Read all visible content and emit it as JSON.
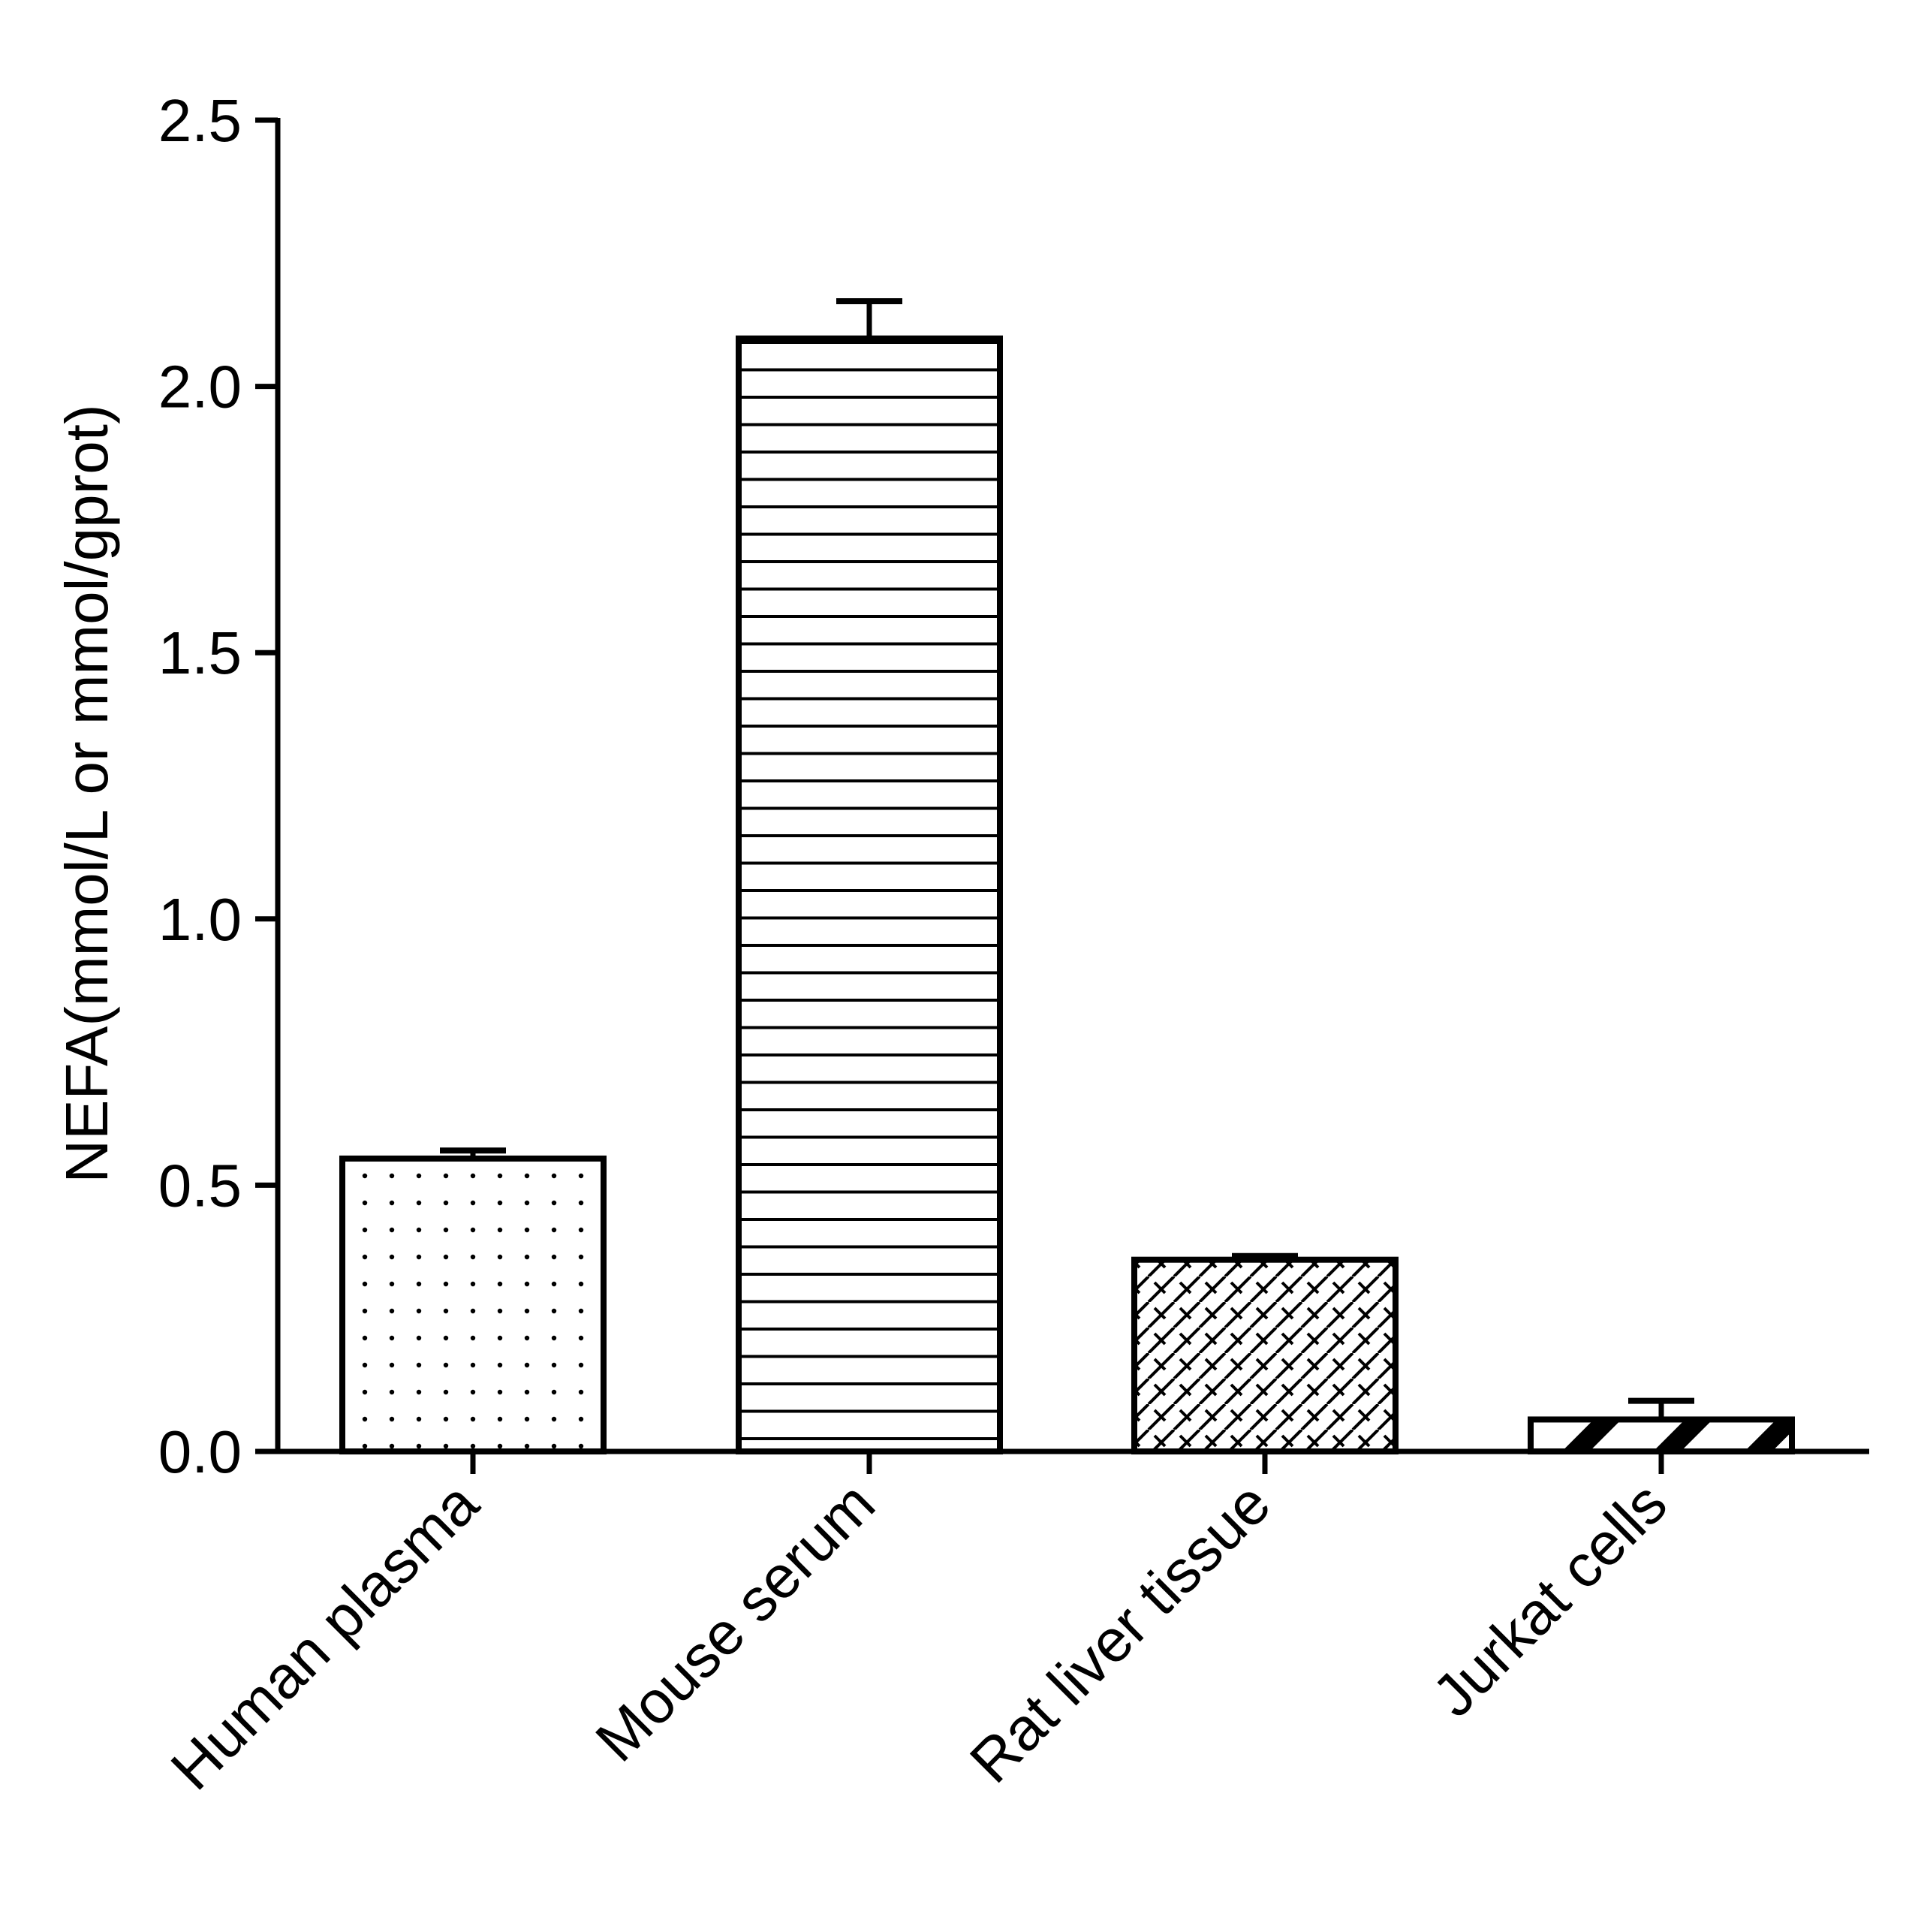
{
  "chart_data": {
    "type": "bar",
    "categories": [
      "Human plasma",
      "Mouse serum",
      "Rat liver tissue",
      "Jurkat cells"
    ],
    "values": [
      0.55,
      2.09,
      0.36,
      0.06
    ],
    "errors": [
      0.015,
      0.07,
      0.007,
      0.035
    ],
    "ylabel": "NEFA(mmol/L or mmol/gprot)",
    "ylim": [
      0,
      2.5
    ],
    "yticks": [
      0.0,
      0.5,
      1.0,
      1.5,
      2.0,
      2.5
    ],
    "ytick_labels": [
      "0.0",
      "0.5",
      "1.0",
      "1.5",
      "2.0",
      "2.5"
    ],
    "fill_patterns": [
      "dots",
      "horizontal-lines",
      "crosshatch",
      "wide-diagonal"
    ],
    "grid": false,
    "legend": false,
    "colors": {
      "ink": "#000000",
      "background": "#ffffff"
    }
  }
}
